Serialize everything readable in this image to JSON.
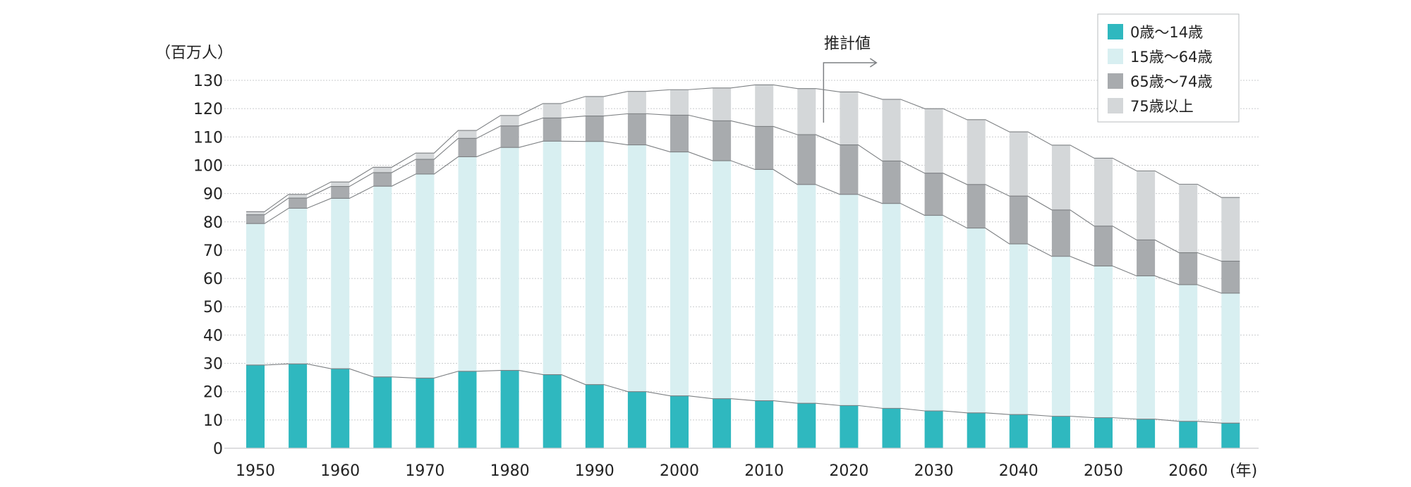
{
  "chart_data": {
    "type": "bar",
    "stacked": true,
    "y_unit_label": "（百万人）",
    "x_unit_label": "(年)",
    "ylim": [
      0,
      130
    ],
    "y_ticks": [
      0,
      10,
      20,
      30,
      40,
      50,
      60,
      70,
      80,
      90,
      100,
      110,
      120,
      130
    ],
    "grid": true,
    "legend_position": "top-right",
    "categories": [
      "1950",
      "1955",
      "1960",
      "1965",
      "1970",
      "1975",
      "1980",
      "1985",
      "1990",
      "1995",
      "2000",
      "2005",
      "2010",
      "2015",
      "2020",
      "2025",
      "2030",
      "2035",
      "2040",
      "2045",
      "2050",
      "2055",
      "2060",
      "2065"
    ],
    "x_tick_labels": [
      "1950",
      "1960",
      "1970",
      "1980",
      "1990",
      "2000",
      "2010",
      "2020",
      "2030",
      "2040",
      "2050",
      "2060"
    ],
    "annotation": "推計値",
    "annotation_year": "2017",
    "series": [
      {
        "name": "0歳〜14歳",
        "color": "#2fb8bf",
        "values": [
          29.4,
          29.8,
          28.1,
          25.2,
          24.8,
          27.2,
          27.5,
          26.0,
          22.5,
          20.0,
          18.5,
          17.5,
          16.8,
          15.9,
          15.1,
          14.1,
          13.2,
          12.5,
          11.9,
          11.3,
          10.8,
          10.3,
          9.5,
          8.9
        ]
      },
      {
        "name": "15歳〜64歳",
        "color": "#d8eff1",
        "values": [
          50.0,
          55.0,
          60.2,
          67.4,
          72.1,
          75.8,
          78.8,
          82.5,
          85.9,
          87.2,
          86.2,
          84.1,
          81.7,
          77.3,
          74.6,
          72.4,
          69.1,
          65.3,
          60.3,
          56.5,
          53.6,
          50.6,
          48.3,
          45.9
        ]
      },
      {
        "name": "65歳〜74歳",
        "color": "#a8abae",
        "values": [
          3.1,
          3.6,
          4.2,
          4.8,
          5.2,
          6.5,
          7.6,
          8.2,
          9.0,
          11.0,
          13.0,
          14.1,
          15.2,
          17.6,
          17.5,
          15.0,
          14.9,
          15.4,
          16.9,
          16.4,
          14.1,
          12.7,
          11.3,
          11.3
        ]
      },
      {
        "name": "75歳以上",
        "color": "#d4d7d9",
        "values": [
          1.1,
          1.3,
          1.6,
          1.9,
          2.2,
          2.8,
          3.7,
          5.1,
          6.9,
          7.9,
          9.0,
          11.6,
          14.7,
          16.3,
          18.7,
          21.8,
          22.8,
          22.9,
          22.7,
          22.9,
          24.0,
          24.4,
          24.2,
          22.5
        ]
      }
    ]
  }
}
